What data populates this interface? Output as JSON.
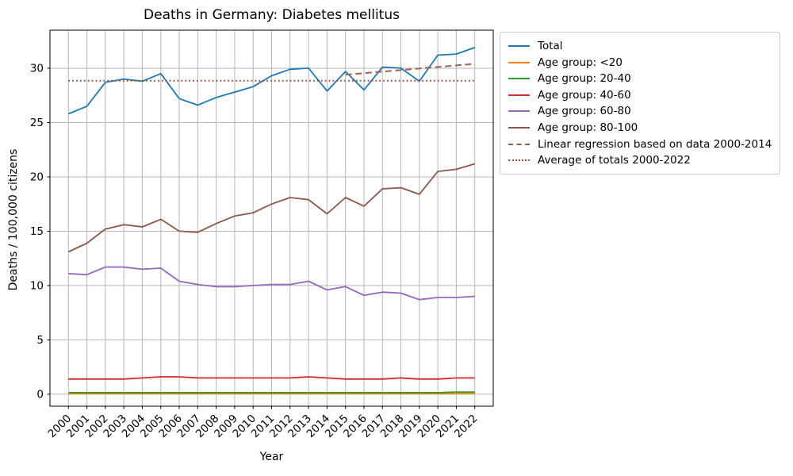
{
  "chart_data": {
    "type": "line",
    "title": "Deaths in Germany: Diabetes mellitus",
    "xlabel": "Year",
    "ylabel": "Deaths / 100,000 citizens",
    "x": [
      2000,
      2001,
      2002,
      2003,
      2004,
      2005,
      2006,
      2007,
      2008,
      2009,
      2010,
      2011,
      2012,
      2013,
      2014,
      2015,
      2016,
      2017,
      2018,
      2019,
      2020,
      2021,
      2022
    ],
    "yticks": [
      0,
      5,
      10,
      15,
      20,
      25,
      30
    ],
    "xlim": [
      1999,
      2023
    ],
    "ylim": [
      -1.1,
      33.5
    ],
    "grid": true,
    "legend_position": "upper right, outside plot area",
    "style": {
      "grid_color": "#b8b8b8",
      "spine_color": "#000000",
      "background": "#ffffff"
    },
    "series": [
      {
        "name": "Total",
        "color": "#1f77b4",
        "style": "solid",
        "values": [
          25.8,
          26.5,
          28.7,
          29.0,
          28.8,
          29.5,
          27.2,
          26.6,
          27.3,
          27.8,
          28.3,
          29.3,
          29.9,
          30.0,
          27.9,
          29.7,
          28.0,
          30.1,
          30.0,
          28.8,
          31.2,
          31.3,
          31.9
        ]
      },
      {
        "name": "Age group: <20",
        "color": "#ff7f0e",
        "style": "solid",
        "values": [
          0.05,
          0.05,
          0.05,
          0.05,
          0.05,
          0.05,
          0.05,
          0.05,
          0.05,
          0.05,
          0.05,
          0.05,
          0.05,
          0.05,
          0.05,
          0.05,
          0.05,
          0.05,
          0.05,
          0.05,
          0.05,
          0.05,
          0.05
        ]
      },
      {
        "name": "Age group: 20-40",
        "color": "#2ca02c",
        "style": "solid",
        "values": [
          0.15,
          0.15,
          0.15,
          0.15,
          0.15,
          0.15,
          0.15,
          0.15,
          0.15,
          0.15,
          0.15,
          0.15,
          0.15,
          0.15,
          0.15,
          0.15,
          0.15,
          0.15,
          0.15,
          0.15,
          0.15,
          0.2,
          0.2
        ]
      },
      {
        "name": "Age group: 40-60",
        "color": "#d62728",
        "style": "solid",
        "values": [
          1.4,
          1.4,
          1.4,
          1.4,
          1.5,
          1.6,
          1.6,
          1.5,
          1.5,
          1.5,
          1.5,
          1.5,
          1.5,
          1.6,
          1.5,
          1.4,
          1.4,
          1.4,
          1.5,
          1.4,
          1.4,
          1.5,
          1.5
        ]
      },
      {
        "name": "Age group: 60-80",
        "color": "#9467bd",
        "style": "solid",
        "values": [
          11.1,
          11.0,
          11.7,
          11.7,
          11.5,
          11.6,
          10.4,
          10.1,
          9.9,
          9.9,
          10.0,
          10.1,
          10.1,
          10.4,
          9.6,
          9.9,
          9.1,
          9.4,
          9.3,
          8.7,
          8.9,
          8.9,
          9.0
        ]
      },
      {
        "name": "Age group: 80-100",
        "color": "#8c564b",
        "style": "solid",
        "values": [
          13.1,
          13.9,
          15.2,
          15.6,
          15.4,
          16.1,
          15.0,
          14.9,
          15.7,
          16.4,
          16.7,
          17.5,
          18.1,
          17.9,
          16.6,
          18.1,
          17.3,
          18.9,
          19.0,
          18.4,
          20.5,
          20.7,
          21.2
        ]
      },
      {
        "name": "Linear regression based on data 2000-2014",
        "color": "#9a635a",
        "style": "dashed",
        "x": [
          2015,
          2022
        ],
        "values": [
          29.4,
          30.4
        ]
      },
      {
        "name": "Average of totals 2000-2022",
        "color": "#9e4a3d",
        "style": "dotted",
        "x": [
          2000,
          2022
        ],
        "values": [
          28.85,
          28.85
        ]
      }
    ]
  }
}
